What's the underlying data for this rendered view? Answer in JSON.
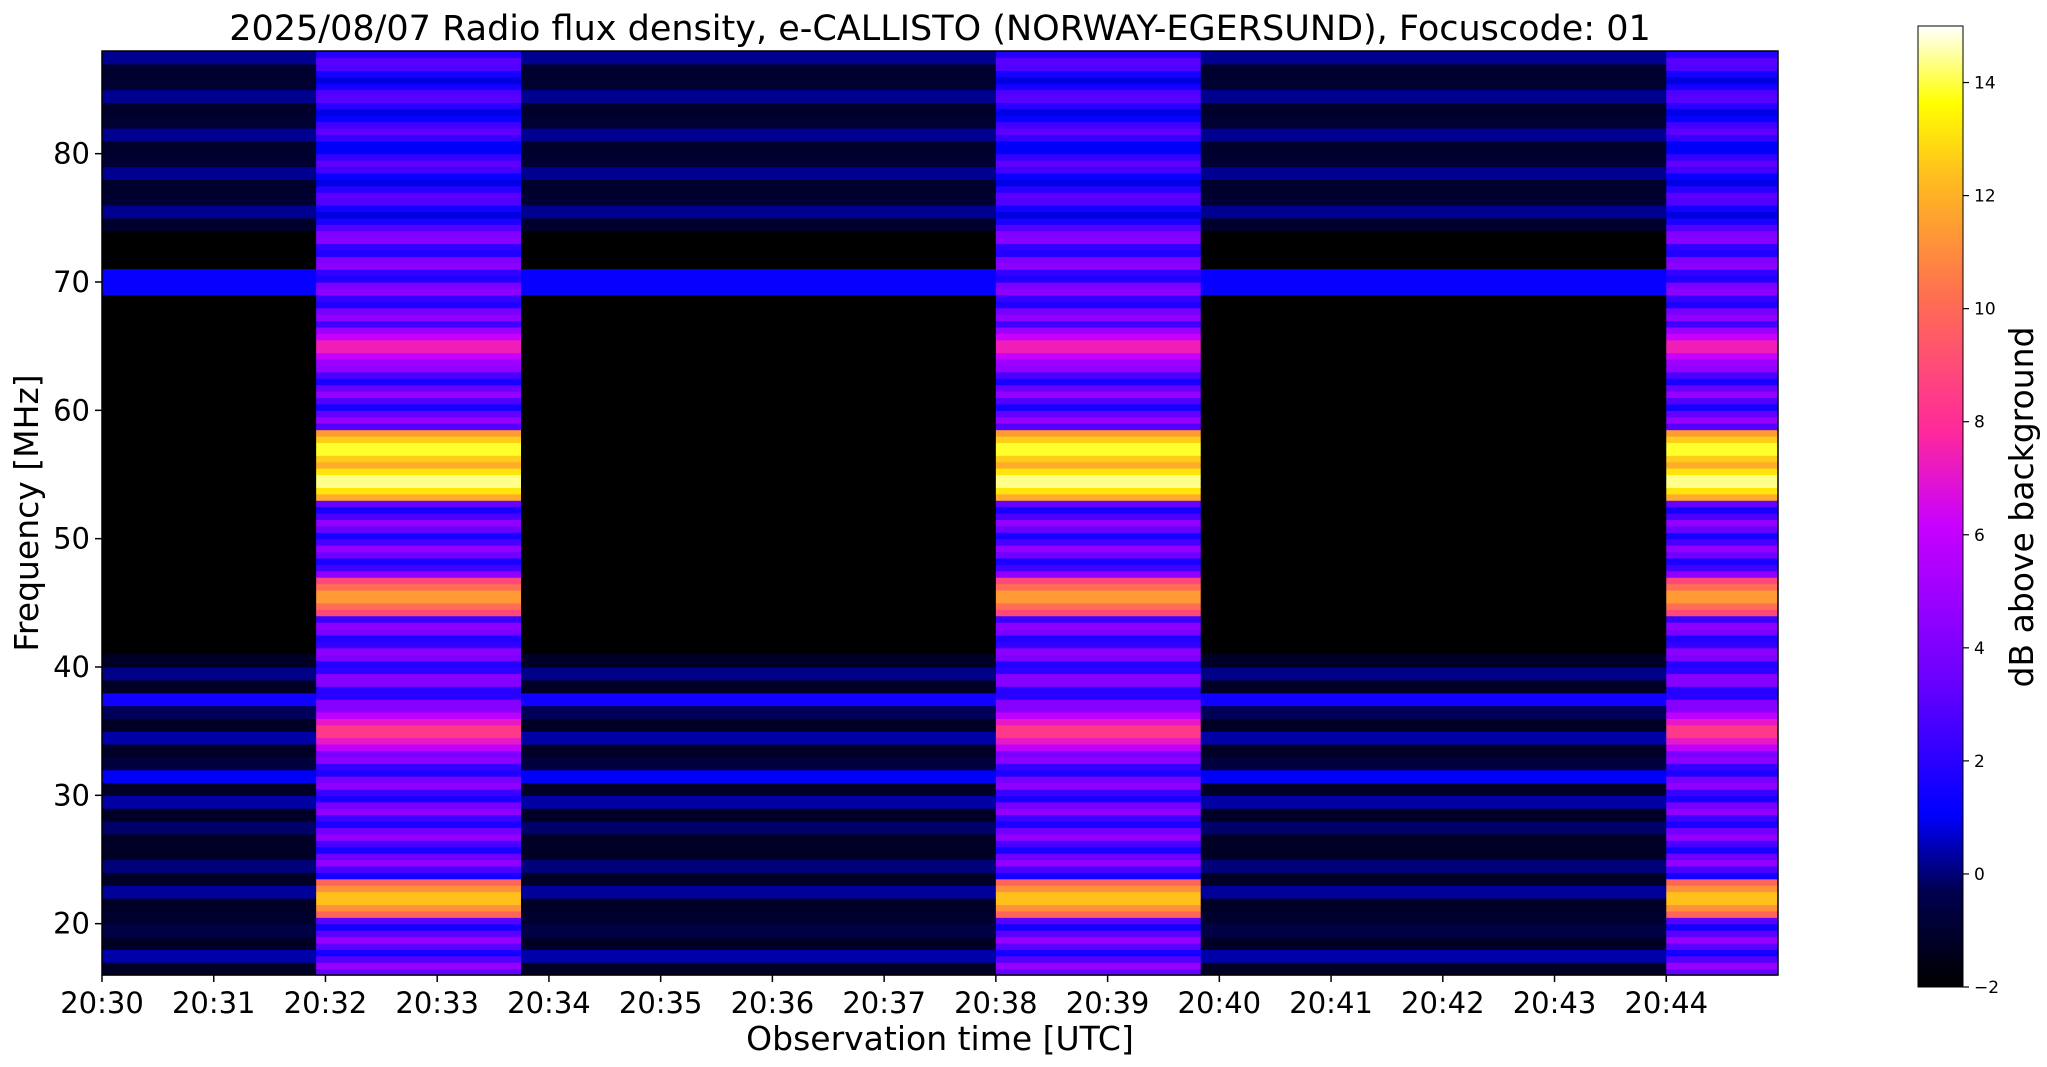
{
  "chart_data": {
    "type": "heatmap",
    "title": "2025/08/07  Radio flux density, e-CALLISTO (NORWAY-EGERSUND), Focuscode: 01",
    "xlabel": "Observation time [UTC]",
    "ylabel": "Frequency [MHz]",
    "x_tick_labels": [
      "20:30",
      "20:31",
      "20:32",
      "20:33",
      "20:34",
      "20:35",
      "20:36",
      "20:37",
      "20:38",
      "20:39",
      "20:40",
      "20:41",
      "20:42",
      "20:43",
      "20:44"
    ],
    "x_range": [
      "20:30:00",
      "20:45:00"
    ],
    "y_ticks": [
      20,
      30,
      40,
      50,
      60,
      70,
      80
    ],
    "y_range": [
      16,
      88
    ],
    "colorbar": {
      "label": "dB above background",
      "ticks": [
        -2,
        0,
        2,
        4,
        6,
        8,
        10,
        12,
        14
      ],
      "range": [
        -2,
        15
      ],
      "colormap": "gnuplot2",
      "colors": [
        "#000000",
        "#0000ff",
        "#8a00ff",
        "#ff1aa6",
        "#ff8050",
        "#ffd600",
        "#ffff00",
        "#ffffff"
      ]
    },
    "calibration_intervals_utc": [
      {
        "start": "20:31:55",
        "end": "20:33:45",
        "level": "high"
      },
      {
        "start": "20:38:00",
        "end": "20:39:50",
        "level": "high"
      },
      {
        "start": "20:44:00",
        "end": "20:45:00",
        "level": "high"
      }
    ],
    "bright_bands_mhz_during_calibration": [
      {
        "freq": 57,
        "db": 14.5
      },
      {
        "freq": 54.5,
        "db": 15
      },
      {
        "freq": 45.5,
        "db": 12
      },
      {
        "freq": 22,
        "db": 13
      },
      {
        "freq": 65,
        "db": 8
      },
      {
        "freq": 35,
        "db": 9
      }
    ],
    "grid": false
  }
}
